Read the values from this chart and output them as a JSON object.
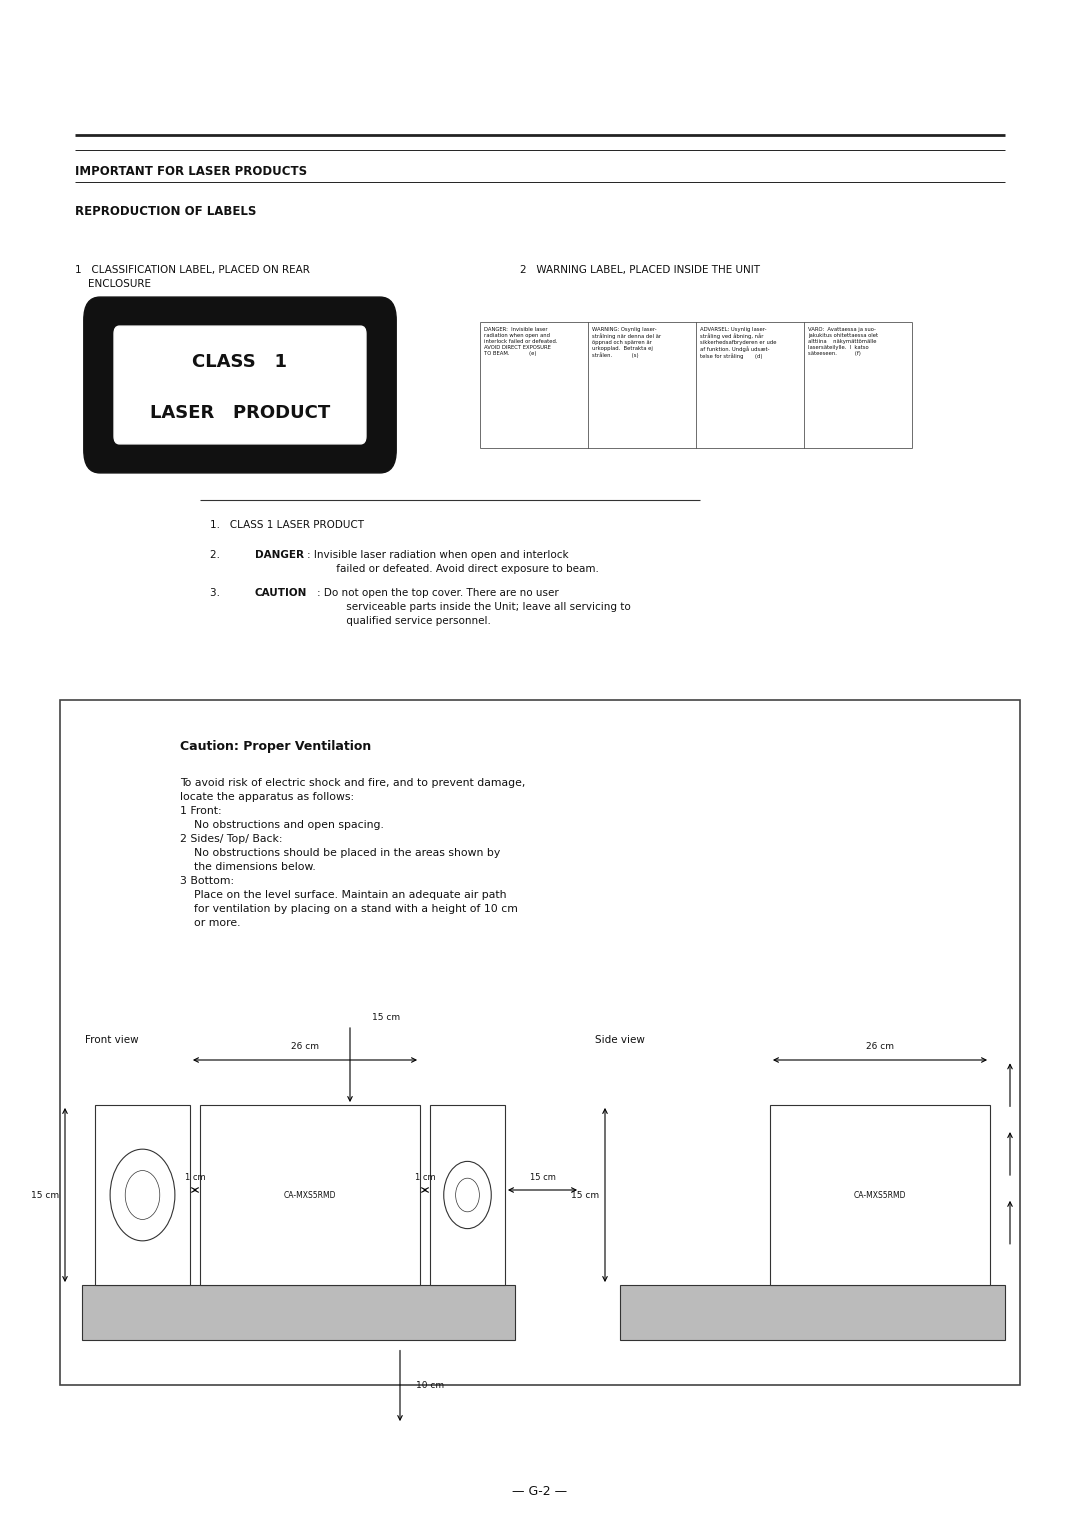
{
  "bg_color": "#ffffff",
  "page_width": 10.8,
  "page_height": 15.28,
  "section1_title": "IMPORTANT FOR LASER PRODUCTS",
  "section2_title": "REPRODUCTION OF LABELS",
  "class_label_line1": "CLASS   1",
  "class_label_line2": "LASER   PRODUCT",
  "warning_col1": "DANGER:  Invisible laser\nradiation when open and\ninterlock failed or defeated.\nAVOID DIRECT EXPOSURE\nTO BEAM.            (e)",
  "warning_col2": "WARNING: Osynlig laser-\nstrålning när denna del är\nöppnad och spärren är\nurkopplad.  Betrakta ej\nstrålen.            (s)",
  "warning_col3": "ADVARSEL: Usynlig laser-\nstråling ved åbning, når\nsikkerhedsafbryderen er ude\naf funktion. Undgå udsæt-\ntelse for stråling       (d)",
  "warning_col4": "VARO:  Avattaessa ja suo-\njakukitus ohitettaessa olet\nalttiina    näkymättömälle\nlasersäteilylle.  I  katso\nsäteeseen.           (f)",
  "list_item1": "CLASS 1 LASER PRODUCT",
  "list_item2_bold": "DANGER",
  "list_item2_rest": ": Invisible laser radiation when open and interlock\nfailed or defeated. Avoid direct exposure to beam.",
  "list_item3_bold": "CAUTION",
  "list_item3_rest": ": Do not open the top cover. There are no user\nserviceable parts inside the Unit; leave all servicing to\nqualified service personnel.",
  "caution_title": "Caution: Proper Ventilation",
  "front_view_label": "Front view",
  "side_view_label": "Side view",
  "model_name": "CA-MXS5RMD",
  "footer_text": "— G-2 —"
}
